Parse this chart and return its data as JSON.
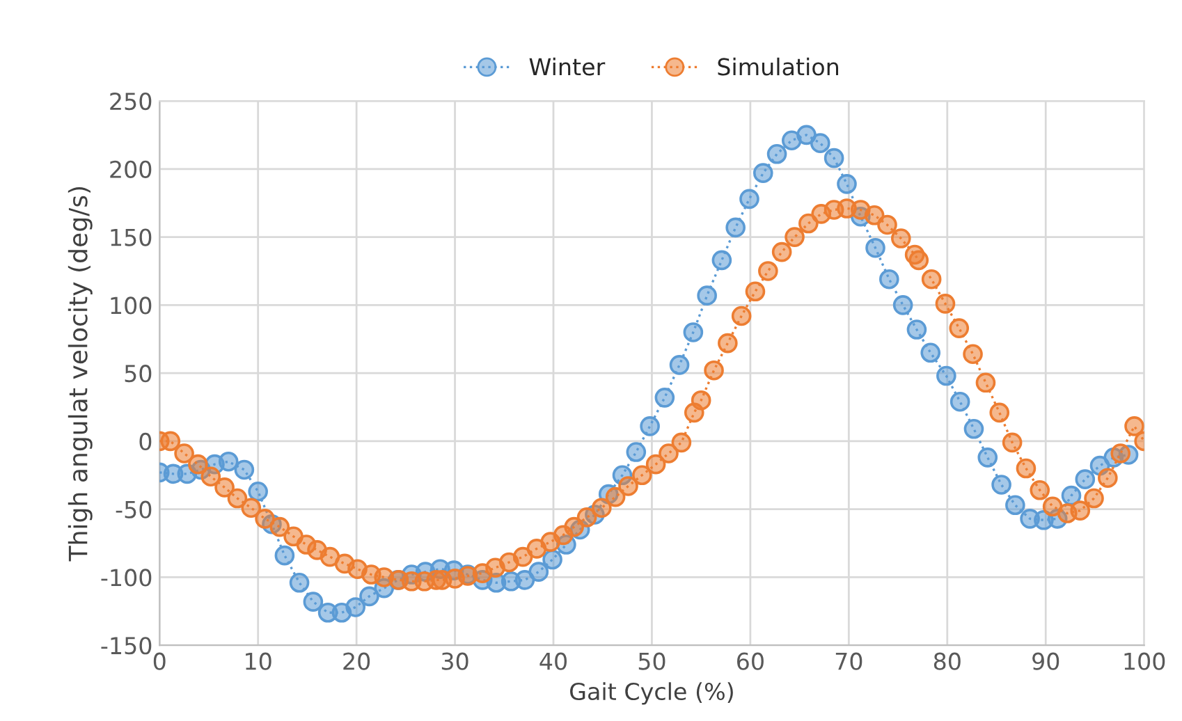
{
  "chart_data": {
    "type": "line",
    "xlabel": "Gait Cycle (%)",
    "ylabel": "Thigh angulat velocity (deg/s)",
    "xlim": [
      0,
      100
    ],
    "xticks": [
      0,
      10,
      20,
      30,
      40,
      50,
      60,
      70,
      80,
      90,
      100
    ],
    "ylim": [
      -150,
      250
    ],
    "yticks": [
      -150,
      -100,
      -50,
      0,
      50,
      100,
      150,
      200,
      250
    ],
    "grid": true,
    "legend": "top",
    "marker": "circle",
    "line_style": "dotted",
    "series": [
      {
        "name": "Winter",
        "color": "#5b9bd5",
        "x": [
          0,
          1.4,
          2.8,
          4.2,
          5.6,
          7.0,
          8.6,
          10.0,
          11.4,
          12.7,
          14.2,
          15.6,
          17.1,
          18.5,
          19.9,
          21.3,
          22.8,
          24.2,
          25.6,
          27.0,
          28.5,
          29.9,
          31.3,
          32.8,
          34.2,
          35.7,
          37.1,
          38.5,
          39.9,
          41.3,
          42.7,
          44.2,
          45.6,
          47.0,
          48.4,
          49.8,
          51.3,
          52.8,
          54.2,
          55.6,
          57.1,
          58.5,
          59.9,
          61.3,
          62.7,
          64.2,
          65.7,
          67.1,
          68.5,
          69.8,
          71.2,
          72.7,
          74.1,
          75.5,
          76.9,
          78.3,
          79.9,
          81.3,
          82.7,
          84.1,
          85.5,
          86.9,
          88.4,
          89.8,
          91.2,
          92.6,
          94.0,
          95.5,
          96.9,
          98.4
        ],
        "values": [
          -23,
          -24,
          -24,
          -21,
          -17,
          -15,
          -21,
          -37,
          -61,
          -84,
          -104,
          -118,
          -126,
          -126,
          -122,
          -114,
          -108,
          -102,
          -98,
          -96,
          -94,
          -95,
          -98,
          -102,
          -104,
          -103,
          -102,
          -96,
          -87,
          -76,
          -65,
          -54,
          -39,
          -25,
          -8,
          11,
          32,
          56,
          80,
          107,
          133,
          157,
          178,
          197,
          211,
          221,
          225,
          219,
          208,
          189,
          165,
          142,
          119,
          100,
          82,
          65,
          48,
          29,
          9,
          -12,
          -32,
          -47,
          -57,
          -58,
          -57,
          -40,
          -28,
          -18,
          -12,
          -10
        ]
      },
      {
        "name": "Simulation",
        "color": "#ed7d31",
        "x": [
          0,
          1.1,
          2.5,
          3.9,
          5.2,
          6.6,
          7.9,
          9.3,
          10.7,
          12.2,
          13.6,
          14.9,
          16.0,
          17.3,
          18.8,
          20.1,
          21.5,
          22.8,
          24.3,
          25.6,
          26.9,
          28.1,
          28.7,
          30.0,
          31.3,
          32.8,
          34.1,
          35.5,
          36.9,
          38.3,
          39.7,
          41.0,
          42.1,
          43.4,
          44.9,
          46.3,
          47.6,
          49.0,
          50.4,
          51.7,
          53.0,
          54.3,
          55.0,
          56.3,
          57.7,
          59.1,
          60.5,
          61.8,
          63.2,
          64.5,
          65.9,
          67.2,
          68.5,
          69.8,
          71.2,
          72.6,
          73.9,
          75.3,
          76.7,
          77.1,
          78.4,
          79.8,
          81.2,
          82.6,
          83.9,
          85.3,
          86.6,
          88.0,
          89.4,
          90.7,
          92.2,
          93.5,
          94.9,
          96.3,
          97.6,
          99.0,
          100
        ],
        "values": [
          0,
          0,
          -9,
          -17,
          -26,
          -34,
          -42,
          -49,
          -57,
          -63,
          -70,
          -76,
          -80,
          -85,
          -90,
          -94,
          -98,
          -100,
          -102,
          -103,
          -103,
          -102,
          -102,
          -101,
          -99,
          -97,
          -93,
          -89,
          -85,
          -79,
          -74,
          -69,
          -63,
          -56,
          -49,
          -41,
          -33,
          -25,
          -17,
          -9,
          -1,
          21,
          30,
          52,
          72,
          92,
          110,
          125,
          139,
          150,
          160,
          167,
          170,
          171,
          170,
          166,
          159,
          149,
          137,
          133,
          119,
          101,
          83,
          64,
          43,
          21,
          -1,
          -20,
          -36,
          -48,
          -53,
          -51,
          -42,
          -27,
          -9,
          11,
          0
        ]
      }
    ]
  }
}
